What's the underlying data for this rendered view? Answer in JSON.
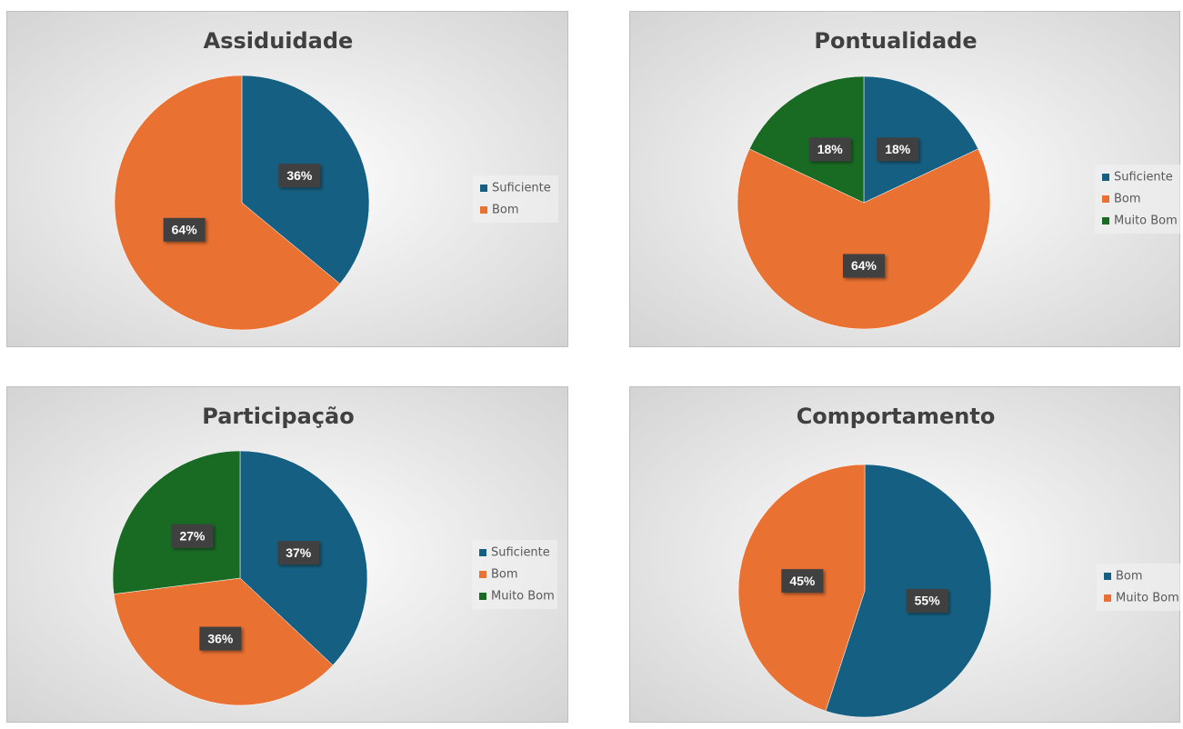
{
  "chart_data": [
    {
      "type": "pie",
      "title": "Assiduidade",
      "categories": [
        "Suficiente",
        "Bom"
      ],
      "values": [
        36,
        64
      ],
      "value_labels": [
        "36%",
        "64%"
      ],
      "colors": [
        "#156082",
        "#e97132"
      ],
      "legend": "right"
    },
    {
      "type": "pie",
      "title": "Pontualidade",
      "categories": [
        "Suficiente",
        "Bom",
        "Muito Bom"
      ],
      "values": [
        18,
        64,
        18
      ],
      "value_labels": [
        "18%",
        "64%",
        "18%"
      ],
      "colors": [
        "#156082",
        "#e97132",
        "#196b24"
      ],
      "legend": "right"
    },
    {
      "type": "pie",
      "title": "Participação",
      "categories": [
        "Suficiente",
        "Bom",
        "Muito Bom"
      ],
      "values": [
        37,
        36,
        27
      ],
      "value_labels": [
        "37%",
        "36%",
        "27%"
      ],
      "colors": [
        "#156082",
        "#e97132",
        "#196b24"
      ],
      "legend": "right"
    },
    {
      "type": "pie",
      "title": "Comportamento",
      "categories": [
        "Bom",
        "Muito Bom"
      ],
      "values": [
        55,
        45
      ],
      "value_labels": [
        "55%",
        "45%"
      ],
      "colors": [
        "#156082",
        "#e97132"
      ],
      "legend": "right"
    }
  ]
}
